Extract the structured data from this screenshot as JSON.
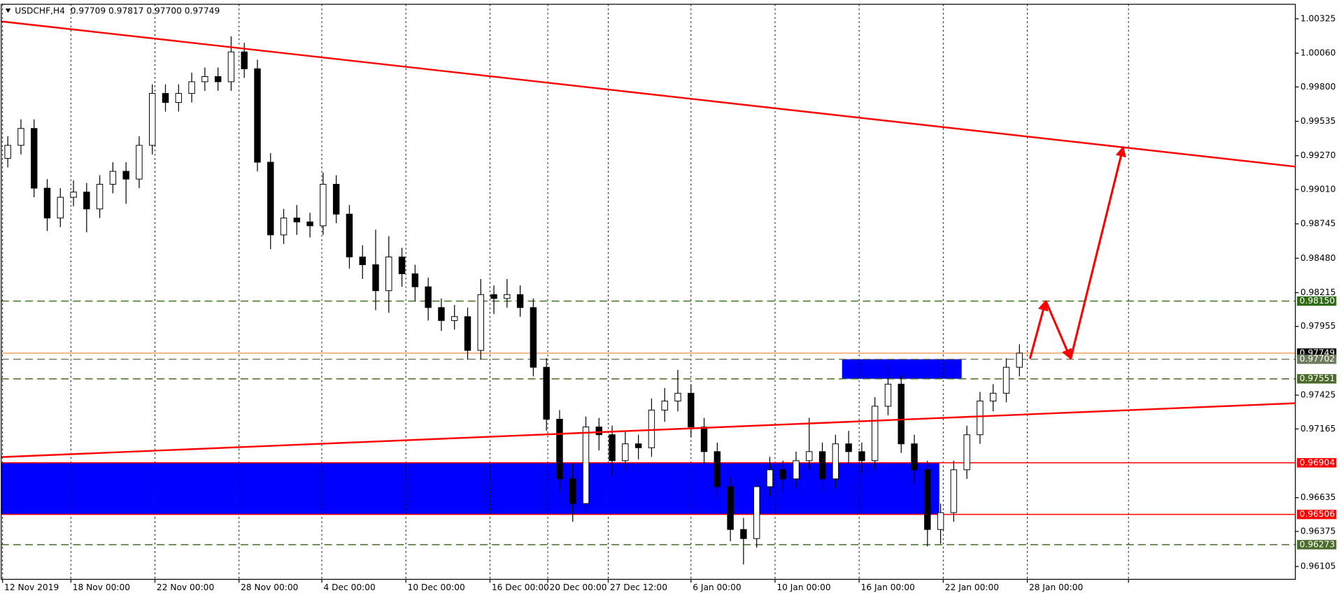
{
  "chart_data": {
    "type": "candlestick",
    "title": "USDCHF,H4",
    "subtitle": "0.97709 0.97817 0.97700 0.97749",
    "open": [
      0.9925,
      0.9935,
      0.9948,
      0.9902,
      0.9879,
      0.9895,
      0.9899,
      0.9886,
      0.9905,
      0.9915,
      0.9909,
      0.9935,
      0.9975,
      0.9968,
      0.9975,
      0.9984,
      0.9988,
      0.9984,
      1.0007,
      0.9994,
      0.9922,
      0.9866,
      0.9879,
      0.9876,
      0.9873,
      0.9905,
      0.9882,
      0.9849,
      0.9843,
      0.9823,
      0.9849,
      0.9836,
      0.9826,
      0.981,
      0.98,
      0.9803,
      0.9777,
      0.982,
      0.9817,
      0.982,
      0.981,
      0.9764,
      0.9724,
      0.9678,
      0.9659,
      0.9718,
      0.9712,
      0.9692,
      0.9705,
      0.9702,
      0.9731,
      0.9738,
      0.9744,
      0.9718,
      0.9699,
      0.9672,
      0.9639,
      0.9632,
      0.9672,
      0.9685,
      0.9678,
      0.9692,
      0.9699,
      0.9678,
      0.9705,
      0.9699,
      0.9692,
      0.9734,
      0.9751,
      0.9705,
      0.9685,
      0.9639,
      0.9652,
      0.9685,
      0.9712,
      0.9738,
      0.9744,
      0.9764
    ],
    "high": [
      0.9942,
      0.9955,
      0.9955,
      0.9909,
      0.9902,
      0.9908,
      0.9906,
      0.9912,
      0.9922,
      0.9922,
      0.9942,
      0.9982,
      0.9982,
      0.9982,
      0.9991,
      0.9995,
      0.9995,
      1.0019,
      1.0014,
      1.0001,
      0.9929,
      0.9886,
      0.9889,
      0.9883,
      0.9914,
      0.9912,
      0.9889,
      0.9858,
      0.987,
      0.9865,
      0.9856,
      0.9843,
      0.9833,
      0.9817,
      0.9812,
      0.981,
      0.9832,
      0.9827,
      0.9832,
      0.9827,
      0.9817,
      0.9771,
      0.9731,
      0.969,
      0.9726,
      0.9725,
      0.9719,
      0.9715,
      0.9712,
      0.974,
      0.9748,
      0.9762,
      0.9751,
      0.9725,
      0.9706,
      0.9679,
      0.9648,
      0.968,
      0.9695,
      0.9692,
      0.9699,
      0.9725,
      0.9706,
      0.9712,
      0.9715,
      0.9706,
      0.9741,
      0.9766,
      0.9758,
      0.9712,
      0.9692,
      0.9659,
      0.9692,
      0.9719,
      0.9745,
      0.9751,
      0.9771,
      0.97817
    ],
    "low": [
      0.9918,
      0.9928,
      0.9895,
      0.9869,
      0.9872,
      0.9888,
      0.9868,
      0.9879,
      0.9898,
      0.989,
      0.9902,
      0.9928,
      0.9961,
      0.9961,
      0.9968,
      0.9977,
      0.9977,
      0.9977,
      0.9987,
      0.9915,
      0.9855,
      0.9859,
      0.9866,
      0.9864,
      0.9866,
      0.9875,
      0.984,
      0.9832,
      0.9808,
      0.9806,
      0.9826,
      0.9815,
      0.98,
      0.9792,
      0.9793,
      0.977,
      0.977,
      0.9805,
      0.981,
      0.9803,
      0.9757,
      0.9715,
      0.9668,
      0.9645,
      0.9652,
      0.97,
      0.968,
      0.9685,
      0.9693,
      0.9695,
      0.9722,
      0.973,
      0.971,
      0.969,
      0.9663,
      0.963,
      0.9612,
      0.9625,
      0.9665,
      0.9668,
      0.9671,
      0.9685,
      0.9668,
      0.9671,
      0.969,
      0.9682,
      0.9685,
      0.9727,
      0.9698,
      0.9675,
      0.9626,
      0.9628,
      0.9645,
      0.9678,
      0.9705,
      0.973,
      0.9737,
      0.9757
    ],
    "close": [
      0.9935,
      0.9948,
      0.9902,
      0.9879,
      0.9895,
      0.9899,
      0.9886,
      0.9905,
      0.9915,
      0.9909,
      0.9935,
      0.9975,
      0.9968,
      0.9975,
      0.9984,
      0.9988,
      0.9984,
      1.0007,
      0.9994,
      0.9922,
      0.9866,
      0.9879,
      0.9876,
      0.9873,
      0.9905,
      0.9882,
      0.9849,
      0.9843,
      0.9823,
      0.9849,
      0.9836,
      0.9826,
      0.981,
      0.98,
      0.9803,
      0.9777,
      0.982,
      0.9817,
      0.982,
      0.981,
      0.9764,
      0.9724,
      0.9678,
      0.9659,
      0.9718,
      0.9712,
      0.9692,
      0.9705,
      0.9702,
      0.9731,
      0.9738,
      0.9744,
      0.9718,
      0.9699,
      0.9672,
      0.9639,
      0.9632,
      0.9672,
      0.9685,
      0.9678,
      0.9692,
      0.9699,
      0.9678,
      0.9705,
      0.9699,
      0.9692,
      0.9734,
      0.9751,
      0.9705,
      0.9685,
      0.9639,
      0.9652,
      0.9685,
      0.9712,
      0.9738,
      0.9744,
      0.9764,
      0.97749
    ],
    "candle_colors": {
      "up": "#ffffff",
      "down": "#000000",
      "outline": "#000000"
    },
    "xlim": [
      -0.5,
      98
    ],
    "xticks": [
      {
        "value": -0.4,
        "label": "12 Nov 2019"
      },
      {
        "value": 4.8,
        "label": "18 Nov 00:00"
      },
      {
        "value": 11.2,
        "label": "22 Nov 00:00"
      },
      {
        "value": 17.6,
        "label": "28 Nov 00:00"
      },
      {
        "value": 23.9,
        "label": "4 Dec 00:00"
      },
      {
        "value": 30.3,
        "label": "10 Dec 00:00"
      },
      {
        "value": 36.7,
        "label": "16 Dec 00:00"
      },
      {
        "value": 41.1,
        "label": "20 Dec 00:00"
      },
      {
        "value": 45.7,
        "label": "27 Dec 12:00"
      },
      {
        "value": 52.0,
        "label": "6 Jan 00:00"
      },
      {
        "value": 58.4,
        "label": "10 Jan 00:00"
      },
      {
        "value": 64.8,
        "label": "16 Jan 00:00"
      },
      {
        "value": 71.2,
        "label": "22 Jan 00:00"
      },
      {
        "value": 77.6,
        "label": "28 Jan 00:00"
      },
      {
        "value": 85.3,
        "label": null
      }
    ],
    "ylim": [
      0.96006,
      1.00437
    ],
    "yticks": [
      1.00325,
      {
        "value": 1.0006,
        "label": "1.00060"
      },
      {
        "value": 0.998,
        "label": "0.99800"
      },
      0.99535,
      {
        "value": 0.9927,
        "label": "0.99270"
      },
      {
        "value": 0.9901,
        "label": "0.99010"
      },
      0.98745,
      {
        "value": 0.9848,
        "label": "0.98480"
      },
      0.98215,
      0.97955,
      0.97425,
      0.97165,
      0.96635,
      0.96375,
      0.96105
    ],
    "grid": "x",
    "levels": [
      {
        "value": 0.9815,
        "label": "0.98150",
        "color": "#2e6b12",
        "style": "dashed"
      },
      {
        "value": 0.97749,
        "label": "0.97749",
        "color": "#000000",
        "line_color": "#f4a460",
        "style": "solid"
      },
      {
        "value": 0.97702,
        "label": "0.97702",
        "color": "#6b7b5b",
        "style": "dashed"
      },
      {
        "value": 0.97551,
        "label": "0.97551",
        "color": "#4a6b2a",
        "style": "dashed"
      },
      {
        "value": 0.96904,
        "label": "0.96904",
        "color": "#ff0000",
        "style": "solid"
      },
      {
        "value": 0.96506,
        "label": "0.96506",
        "color": "#ff0000",
        "style": "solid"
      },
      {
        "value": 0.96273,
        "label": "0.96273",
        "color": "#4a6b2a",
        "style": "dashed"
      }
    ],
    "zones": [
      {
        "x": [
          -0.5,
          70.9
        ],
        "y": [
          0.96506,
          0.96904
        ],
        "color": "#0000ff"
      },
      {
        "x": [
          63.5,
          72.6
        ],
        "y": [
          0.97551,
          0.97702
        ],
        "color": "#0000ff"
      }
    ],
    "trendlines": [
      {
        "x": [
          -0.5,
          98
        ],
        "y": [
          1.00305,
          0.99186
        ],
        "color": "#ff0000"
      },
      {
        "x": [
          -0.5,
          98
        ],
        "y": [
          0.96948,
          0.97363
        ],
        "color": "#ff0000"
      }
    ],
    "arrows": {
      "x": [
        77.8,
        79.0,
        80.9,
        84.9
      ],
      "y": [
        0.97705,
        0.98152,
        0.97705,
        0.99338
      ],
      "color": "#ff0000"
    }
  }
}
